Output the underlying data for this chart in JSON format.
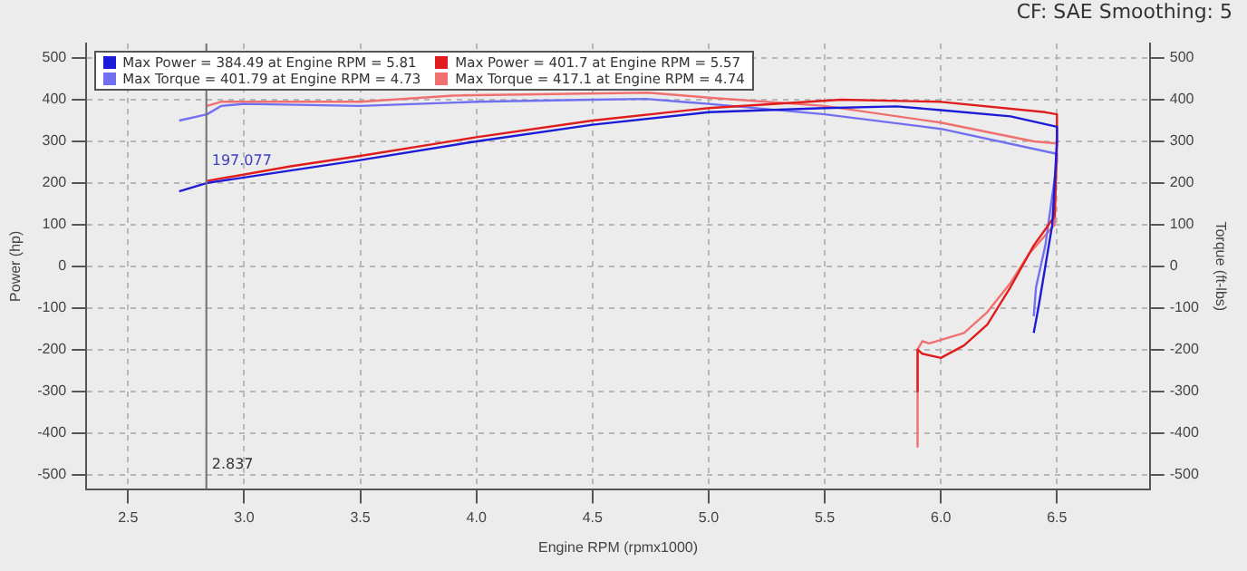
{
  "chart_data": {
    "type": "line",
    "xlabel": "Engine RPM (rpmx1000)",
    "ylabel": "Power (hp)",
    "y2label": "Torque (ft-lbs)",
    "xlim": [
      2.32,
      6.9
    ],
    "xticks": [
      {
        "value": 2.5,
        "label": "2.5"
      },
      {
        "value": 3,
        "label": "3.0"
      },
      {
        "value": 3.5,
        "label": "3.5"
      },
      {
        "value": 4,
        "label": "4.0"
      },
      {
        "value": 4.5,
        "label": "4.5"
      },
      {
        "value": 5,
        "label": "5.0"
      },
      {
        "value": 5.5,
        "label": "5.5"
      },
      {
        "value": 6,
        "label": "6.0"
      },
      {
        "value": 6.5,
        "label": "6.5"
      }
    ],
    "ylim": [
      -535,
      535
    ],
    "yticks": [
      -500,
      -400,
      -300,
      -200,
      -100,
      0,
      100,
      200,
      300,
      400,
      500
    ],
    "y2lim": [
      -535,
      535
    ],
    "y2ticks": [
      -500,
      -400,
      -300,
      -200,
      -100,
      0,
      100,
      200,
      300,
      400,
      500
    ],
    "grid": true,
    "legend": "top left",
    "marker": "none",
    "line_style": "solid",
    "ref_lines": [
      {
        "axis": "x",
        "value": 2.837,
        "color": "#707070"
      }
    ],
    "annotations": [
      {
        "text": "197.077",
        "x": 2.837,
        "y": 200
      },
      {
        "text": "2.837",
        "x": 2.837,
        "y": -530
      },
      "CF: SAE Smoothing: 5"
    ],
    "series": [
      {
        "name": "Max Power = 384.49 at Engine RPM = 5.81",
        "color": "#1c1cd8",
        "x": [
          2.72,
          2.84,
          3.2,
          3.5,
          4.0,
          4.5,
          5.0,
          5.5,
          5.81,
          6.0,
          6.3,
          6.5,
          6.5,
          6.48,
          6.45,
          6.42,
          6.4
        ],
        "values": [
          180,
          200,
          230,
          255,
          300,
          340,
          370,
          380,
          384,
          375,
          360,
          335,
          300,
          100,
          0,
          -100,
          -160
        ]
      },
      {
        "name": "Max Power = 401.7 at Engine RPM = 5.57",
        "color": "#e01c1c",
        "x": [
          2.84,
          3.2,
          3.5,
          4.0,
          4.5,
          5.0,
          5.57,
          6.0,
          6.45,
          6.5,
          6.5,
          6.49,
          6.4,
          6.3,
          6.2,
          6.1,
          6.0,
          5.92,
          5.9,
          5.9
        ],
        "values": [
          205,
          240,
          265,
          310,
          350,
          380,
          400,
          395,
          370,
          365,
          300,
          120,
          50,
          -50,
          -140,
          -190,
          -220,
          -210,
          -200,
          -300
        ]
      },
      {
        "name": "Max Torque = 401.79 at Engine RPM = 4.73",
        "color": "#7070f0",
        "x": [
          2.72,
          2.84,
          2.9,
          3.0,
          3.5,
          4.0,
          4.5,
          4.73,
          5.0,
          5.5,
          6.0,
          6.5,
          6.5,
          6.45,
          6.41,
          6.4
        ],
        "values": [
          350,
          365,
          385,
          390,
          385,
          395,
          400,
          402,
          390,
          365,
          330,
          270,
          250,
          50,
          -50,
          -120
        ]
      },
      {
        "name": "Max Torque = 417.1 at Engine RPM = 4.74",
        "color": "#f07070",
        "x": [
          2.84,
          2.9,
          3.5,
          3.9,
          4.74,
          5.0,
          5.5,
          6.0,
          6.4,
          6.5,
          6.49,
          6.38,
          6.3,
          6.2,
          6.1,
          5.95,
          5.92,
          5.9,
          5.9
        ],
        "values": [
          385,
          395,
          395,
          410,
          417,
          405,
          385,
          345,
          300,
          295,
          100,
          30,
          -40,
          -110,
          -160,
          -185,
          -180,
          -200,
          -433
        ]
      }
    ]
  }
}
